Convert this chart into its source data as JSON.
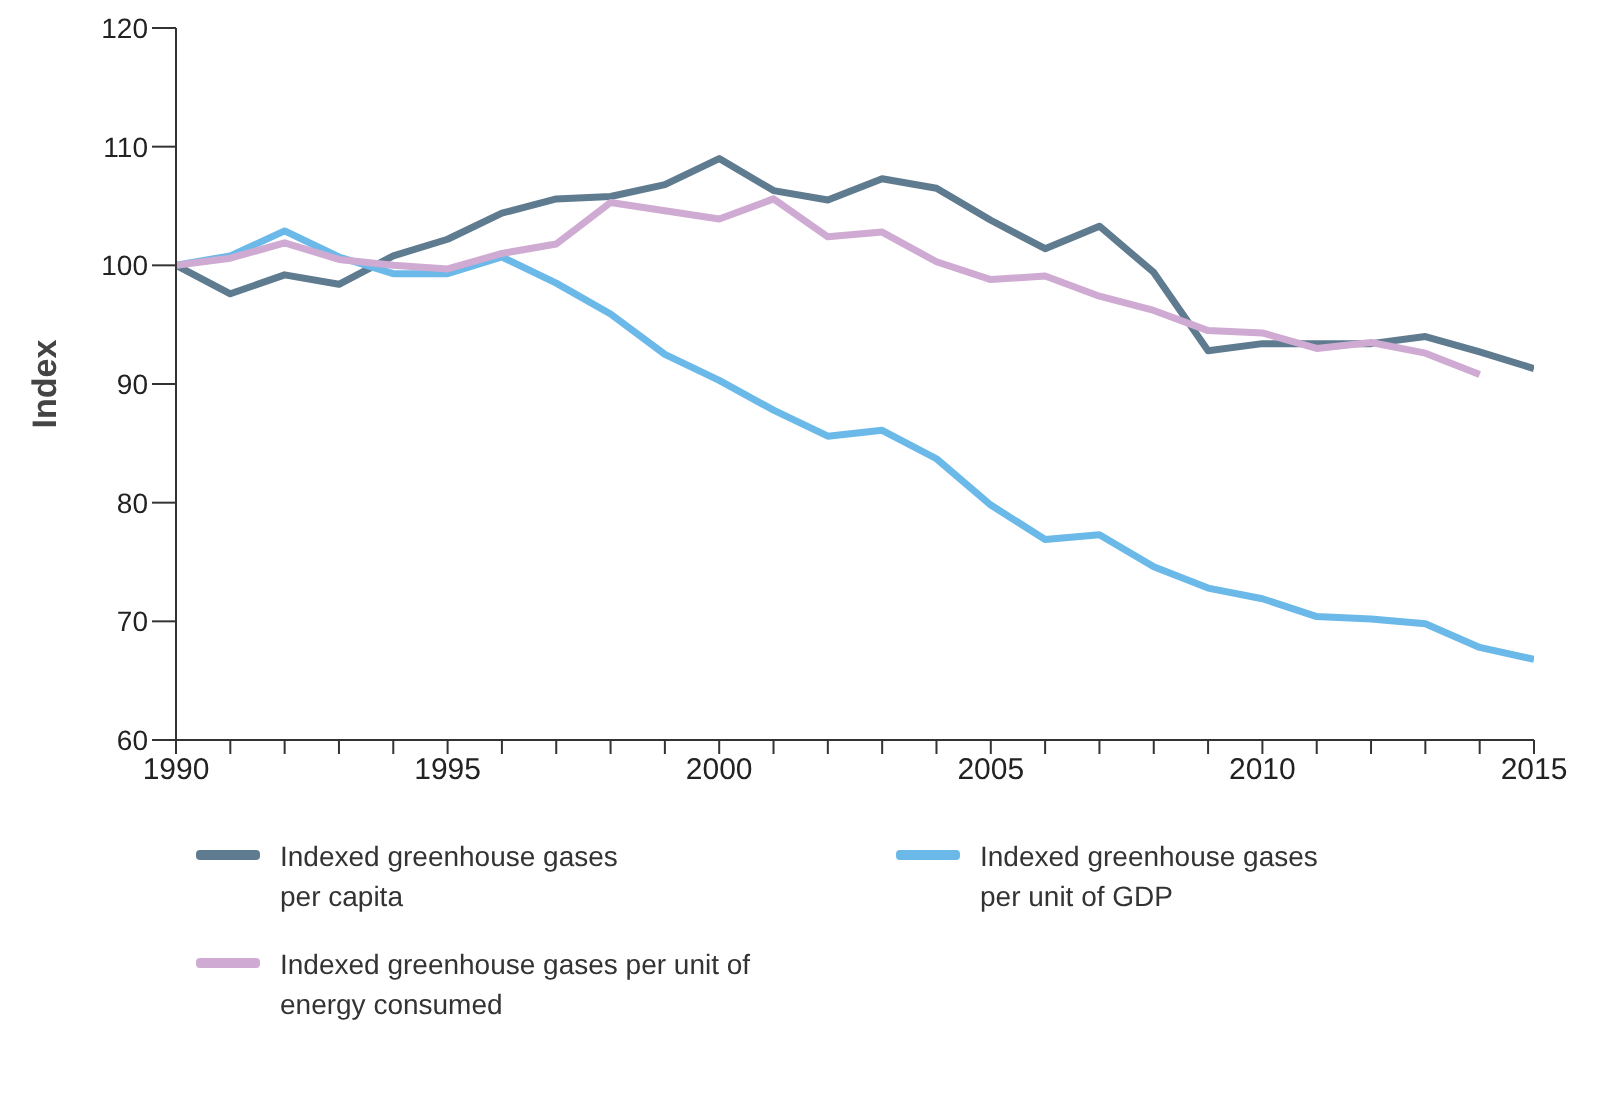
{
  "chart_data": {
    "type": "line",
    "ylabel": "Index",
    "x": [
      1990,
      1991,
      1992,
      1993,
      1994,
      1995,
      1996,
      1997,
      1998,
      1999,
      2000,
      2001,
      2002,
      2003,
      2004,
      2005,
      2006,
      2007,
      2008,
      2009,
      2010,
      2011,
      2012,
      2013,
      2014,
      2015
    ],
    "series": [
      {
        "name": "Indexed greenhouse gases per capita",
        "color": "#5f7b8f",
        "values": [
          100,
          97.6,
          99.2,
          98.4,
          100.8,
          102.2,
          104.4,
          105.6,
          105.8,
          106.8,
          109,
          106.3,
          105.5,
          107.3,
          106.5,
          103.8,
          101.4,
          103.3,
          99.4,
          92.8,
          93.4,
          93.4,
          93.4,
          94,
          92.7,
          91.3
        ]
      },
      {
        "name": "Indexed greenhouse gases per unit of GDP",
        "color": "#6bb9e8",
        "values": [
          100,
          100.8,
          102.9,
          100.7,
          99.3,
          99.3,
          100.7,
          98.5,
          95.9,
          92.5,
          90.3,
          87.8,
          85.6,
          86.1,
          83.7,
          79.8,
          76.9,
          77.3,
          74.6,
          72.8,
          71.9,
          70.4,
          70.2,
          69.8,
          67.8,
          66.8
        ]
      },
      {
        "name": "Indexed greenhouse gases per unit of energy consumed",
        "color": "#cfaad2",
        "values": [
          100,
          100.6,
          101.9,
          100.5,
          100,
          99.7,
          101,
          101.8,
          105.3,
          104.6,
          103.9,
          105.6,
          102.4,
          102.8,
          100.3,
          98.8,
          99.1,
          97.4,
          96.2,
          94.5,
          94.3,
          93,
          93.5,
          92.6,
          90.8,
          null
        ]
      }
    ],
    "xlim": [
      1990,
      2015
    ],
    "xticks": [
      1990,
      {
        "value": 1991,
        "label": null
      },
      {
        "value": 1992,
        "label": null
      },
      {
        "value": 1993,
        "label": null
      },
      {
        "value": 1994,
        "label": null
      },
      1995,
      {
        "value": 1996,
        "label": null
      },
      {
        "value": 1997,
        "label": null
      },
      {
        "value": 1998,
        "label": null
      },
      {
        "value": 1999,
        "label": null
      },
      2000,
      {
        "value": 2001,
        "label": null
      },
      {
        "value": 2002,
        "label": null
      },
      {
        "value": 2003,
        "label": null
      },
      {
        "value": 2004,
        "label": null
      },
      2005,
      {
        "value": 2006,
        "label": null
      },
      {
        "value": 2007,
        "label": null
      },
      {
        "value": 2008,
        "label": null
      },
      {
        "value": 2009,
        "label": null
      },
      2010,
      {
        "value": 2011,
        "label": null
      },
      {
        "value": 2012,
        "label": null
      },
      {
        "value": 2013,
        "label": null
      },
      {
        "value": 2014,
        "label": null
      },
      2015
    ],
    "ylim": [
      60,
      120
    ],
    "yticks": [
      60,
      70,
      80,
      90,
      100,
      110,
      120
    ],
    "grid": false,
    "legend": "bottom",
    "marker": "none",
    "line_style": "solid"
  }
}
